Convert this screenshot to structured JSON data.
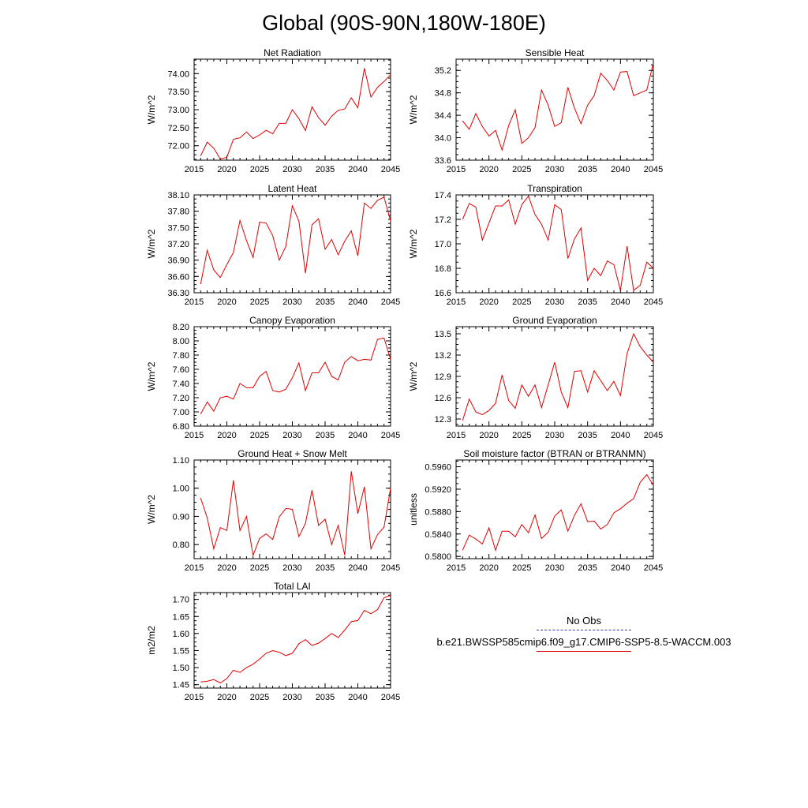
{
  "title": "Global (90S-90N,180W-180E)",
  "legend": {
    "obs_label": "No Obs",
    "model_label": "b.e21.BWSSP585cmip6.f09_g17.CMIP6-SSP5-8.5-WACCM.003",
    "obs_color": "#3a3aa0",
    "model_color": "#e00000"
  },
  "chart_data": [
    {
      "type": "line",
      "title": "Net Radiation",
      "ylabel": "W/m^2",
      "xlabel": "",
      "xlim": [
        2015,
        2045
      ],
      "ylim": [
        71.6,
        74.4
      ],
      "xticks": [
        2015,
        2020,
        2025,
        2030,
        2035,
        2040,
        2045
      ],
      "yticks": [
        72.0,
        72.5,
        73.0,
        73.5,
        74.0
      ],
      "ytick_labels": [
        "72.00",
        "72.50",
        "73.00",
        "73.50",
        "74.00"
      ],
      "x": [
        2016,
        2017,
        2018,
        2019,
        2020,
        2021,
        2022,
        2023,
        2024,
        2025,
        2026,
        2027,
        2028,
        2029,
        2030,
        2031,
        2032,
        2033,
        2034,
        2035,
        2036,
        2037,
        2038,
        2039,
        2040,
        2041,
        2042,
        2043,
        2044,
        2045
      ],
      "series": [
        {
          "name": "b.e21.BWSSP585cmip6.f09_g17.CMIP6-SSP5-8.5-WACCM.003",
          "values": [
            71.72,
            72.1,
            71.93,
            71.63,
            71.68,
            72.18,
            72.22,
            72.38,
            72.2,
            72.3,
            72.43,
            72.33,
            72.62,
            72.62,
            73.0,
            72.75,
            72.42,
            73.08,
            72.78,
            72.57,
            72.82,
            72.98,
            73.02,
            73.33,
            73.05,
            74.15,
            73.35,
            73.62,
            73.78,
            73.97
          ]
        }
      ]
    },
    {
      "type": "line",
      "title": "Sensible Heat",
      "ylabel": "W/m^2",
      "xlabel": "",
      "xlim": [
        2015,
        2045
      ],
      "ylim": [
        33.6,
        35.4
      ],
      "xticks": [
        2015,
        2020,
        2025,
        2030,
        2035,
        2040,
        2045
      ],
      "yticks": [
        33.6,
        34.0,
        34.4,
        34.8,
        35.2
      ],
      "ytick_labels": [
        "33.6",
        "34.0",
        "34.4",
        "34.8",
        "35.2"
      ],
      "x": [
        2016,
        2017,
        2018,
        2019,
        2020,
        2021,
        2022,
        2023,
        2024,
        2025,
        2026,
        2027,
        2028,
        2029,
        2030,
        2031,
        2032,
        2033,
        2034,
        2035,
        2036,
        2037,
        2038,
        2039,
        2040,
        2041,
        2042,
        2043,
        2044,
        2045
      ],
      "series": [
        {
          "name": "b.e21.BWSSP585cmip6.f09_g17.CMIP6-SSP5-8.5-WACCM.003",
          "values": [
            34.3,
            34.15,
            34.43,
            34.2,
            34.03,
            34.13,
            33.78,
            34.22,
            34.5,
            33.9,
            34.0,
            34.18,
            34.85,
            34.58,
            34.2,
            34.27,
            34.9,
            34.53,
            34.25,
            34.58,
            34.75,
            35.15,
            35.02,
            34.85,
            35.17,
            35.18,
            34.75,
            34.8,
            34.85,
            35.33
          ]
        }
      ]
    },
    {
      "type": "line",
      "title": "Latent Heat",
      "ylabel": "W/m^2",
      "xlabel": "",
      "xlim": [
        2015,
        2045
      ],
      "ylim": [
        36.3,
        38.1
      ],
      "xticks": [
        2015,
        2020,
        2025,
        2030,
        2035,
        2040,
        2045
      ],
      "yticks": [
        36.3,
        36.6,
        36.9,
        37.2,
        37.5,
        37.8,
        38.1
      ],
      "ytick_labels": [
        "36.30",
        "36.60",
        "36.90",
        "37.20",
        "37.50",
        "37.80",
        "38.10"
      ],
      "x": [
        2016,
        2017,
        2018,
        2019,
        2020,
        2021,
        2022,
        2023,
        2024,
        2025,
        2026,
        2027,
        2028,
        2029,
        2030,
        2031,
        2032,
        2033,
        2034,
        2035,
        2036,
        2037,
        2038,
        2039,
        2040,
        2041,
        2042,
        2043,
        2044,
        2045
      ],
      "series": [
        {
          "name": "b.e21.BWSSP585cmip6.f09_g17.CMIP6-SSP5-8.5-WACCM.003",
          "values": [
            36.46,
            37.08,
            36.72,
            36.58,
            36.82,
            37.04,
            37.63,
            37.26,
            36.95,
            37.6,
            37.58,
            37.35,
            36.9,
            37.15,
            37.9,
            37.62,
            36.66,
            37.55,
            37.66,
            37.1,
            37.28,
            37.0,
            37.25,
            37.44,
            36.98,
            37.95,
            37.85,
            38.0,
            38.06,
            37.62
          ]
        }
      ]
    },
    {
      "type": "line",
      "title": "Transpiration",
      "ylabel": "W/m^2",
      "xlabel": "",
      "xlim": [
        2015,
        2045
      ],
      "ylim": [
        16.6,
        17.4
      ],
      "xticks": [
        2015,
        2020,
        2025,
        2030,
        2035,
        2040,
        2045
      ],
      "yticks": [
        16.6,
        16.8,
        17.0,
        17.2,
        17.4
      ],
      "ytick_labels": [
        "16.6",
        "16.8",
        "17.0",
        "17.2",
        "17.4"
      ],
      "x": [
        2016,
        2017,
        2018,
        2019,
        2020,
        2021,
        2022,
        2023,
        2024,
        2025,
        2026,
        2027,
        2028,
        2029,
        2030,
        2031,
        2032,
        2033,
        2034,
        2035,
        2036,
        2037,
        2038,
        2039,
        2040,
        2041,
        2042,
        2043,
        2044,
        2045
      ],
      "series": [
        {
          "name": "b.e21.BWSSP585cmip6.f09_g17.CMIP6-SSP5-8.5-WACCM.003",
          "values": [
            17.2,
            17.33,
            17.3,
            17.03,
            17.17,
            17.31,
            17.31,
            17.36,
            17.16,
            17.32,
            17.39,
            17.24,
            17.16,
            17.03,
            17.32,
            17.28,
            16.88,
            17.04,
            17.13,
            16.7,
            16.8,
            16.74,
            16.86,
            16.83,
            16.62,
            16.98,
            16.62,
            16.66,
            16.85,
            16.8
          ]
        }
      ]
    },
    {
      "type": "line",
      "title": "Canopy Evaporation",
      "ylabel": "W/m^2",
      "xlabel": "",
      "xlim": [
        2015,
        2045
      ],
      "ylim": [
        6.8,
        8.2
      ],
      "xticks": [
        2015,
        2020,
        2025,
        2030,
        2035,
        2040,
        2045
      ],
      "yticks": [
        6.8,
        7.0,
        7.2,
        7.4,
        7.6,
        7.8,
        8.0,
        8.2
      ],
      "ytick_labels": [
        "6.80",
        "7.00",
        "7.20",
        "7.40",
        "7.60",
        "7.80",
        "8.00",
        "8.20"
      ],
      "x": [
        2016,
        2017,
        2018,
        2019,
        2020,
        2021,
        2022,
        2023,
        2024,
        2025,
        2026,
        2027,
        2028,
        2029,
        2030,
        2031,
        2032,
        2033,
        2034,
        2035,
        2036,
        2037,
        2038,
        2039,
        2040,
        2041,
        2042,
        2043,
        2044,
        2045
      ],
      "series": [
        {
          "name": "b.e21.BWSSP585cmip6.f09_g17.CMIP6-SSP5-8.5-WACCM.003",
          "values": [
            6.97,
            7.14,
            7.01,
            7.2,
            7.22,
            7.18,
            7.4,
            7.34,
            7.34,
            7.5,
            7.57,
            7.3,
            7.28,
            7.32,
            7.48,
            7.69,
            7.3,
            7.55,
            7.55,
            7.7,
            7.5,
            7.45,
            7.7,
            7.78,
            7.72,
            7.74,
            7.73,
            8.02,
            8.04,
            7.74
          ]
        }
      ]
    },
    {
      "type": "line",
      "title": "Ground Evaporation",
      "ylabel": "W/m^2",
      "xlabel": "",
      "xlim": [
        2015,
        2045
      ],
      "ylim": [
        12.2,
        13.6
      ],
      "xticks": [
        2015,
        2020,
        2025,
        2030,
        2035,
        2040,
        2045
      ],
      "yticks": [
        12.3,
        12.6,
        12.9,
        13.2,
        13.5
      ],
      "ytick_labels": [
        "12.3",
        "12.6",
        "12.9",
        "13.2",
        "13.5"
      ],
      "x": [
        2016,
        2017,
        2018,
        2019,
        2020,
        2021,
        2022,
        2023,
        2024,
        2025,
        2026,
        2027,
        2028,
        2029,
        2030,
        2031,
        2032,
        2033,
        2034,
        2035,
        2036,
        2037,
        2038,
        2039,
        2040,
        2041,
        2042,
        2043,
        2044,
        2045
      ],
      "series": [
        {
          "name": "b.e21.BWSSP585cmip6.f09_g17.CMIP6-SSP5-8.5-WACCM.003",
          "values": [
            12.28,
            12.58,
            12.4,
            12.36,
            12.42,
            12.52,
            12.92,
            12.56,
            12.45,
            12.78,
            12.62,
            12.78,
            12.46,
            12.78,
            13.1,
            12.68,
            12.46,
            12.97,
            12.98,
            12.68,
            12.98,
            12.84,
            12.7,
            12.83,
            12.63,
            13.22,
            13.5,
            13.32,
            13.2,
            13.1
          ]
        }
      ]
    },
    {
      "type": "line",
      "title": "Ground Heat + Snow Melt",
      "ylabel": "W/m^2",
      "xlabel": "",
      "xlim": [
        2015,
        2045
      ],
      "ylim": [
        0.75,
        1.1
      ],
      "xticks": [
        2015,
        2020,
        2025,
        2030,
        2035,
        2040,
        2045
      ],
      "yticks": [
        0.8,
        0.9,
        1.0,
        1.1
      ],
      "ytick_labels": [
        "0.80",
        "0.90",
        "1.00",
        "1.10"
      ],
      "x": [
        2016,
        2017,
        2018,
        2019,
        2020,
        2021,
        2022,
        2023,
        2024,
        2025,
        2026,
        2027,
        2028,
        2029,
        2030,
        2031,
        2032,
        2033,
        2034,
        2035,
        2036,
        2037,
        2038,
        2039,
        2040,
        2041,
        2042,
        2043,
        2044,
        2045
      ],
      "series": [
        {
          "name": "b.e21.BWSSP585cmip6.f09_g17.CMIP6-SSP5-8.5-WACCM.003",
          "values": [
            0.965,
            0.895,
            0.785,
            0.86,
            0.85,
            1.028,
            0.85,
            0.9,
            0.762,
            0.822,
            0.838,
            0.818,
            0.898,
            0.928,
            0.925,
            0.828,
            0.875,
            0.993,
            0.868,
            0.89,
            0.8,
            0.868,
            0.762,
            1.06,
            0.91,
            1.005,
            0.785,
            0.835,
            0.862,
            1.0
          ]
        }
      ]
    },
    {
      "type": "line",
      "title": "Soil moisture factor (BTRAN or BTRANMN)",
      "ylabel": "unitless",
      "xlabel": "",
      "xlim": [
        2015,
        2045
      ],
      "ylim": [
        0.5796,
        0.5972
      ],
      "xticks": [
        2015,
        2020,
        2025,
        2030,
        2035,
        2040,
        2045
      ],
      "yticks": [
        0.58,
        0.584,
        0.588,
        0.592,
        0.596
      ],
      "ytick_labels": [
        "0.5800",
        "0.5840",
        "0.5880",
        "0.5920",
        "0.5960"
      ],
      "x": [
        2016,
        2017,
        2018,
        2019,
        2020,
        2021,
        2022,
        2023,
        2024,
        2025,
        2026,
        2027,
        2028,
        2029,
        2030,
        2031,
        2032,
        2033,
        2034,
        2035,
        2036,
        2037,
        2038,
        2039,
        2040,
        2041,
        2042,
        2043,
        2044,
        2045
      ],
      "series": [
        {
          "name": "b.e21.BWSSP585cmip6.f09_g17.CMIP6-SSP5-8.5-WACCM.003",
          "values": [
            0.5811,
            0.5838,
            0.5831,
            0.5822,
            0.5851,
            0.5811,
            0.5845,
            0.5845,
            0.5835,
            0.5857,
            0.5842,
            0.5874,
            0.5832,
            0.5843,
            0.5872,
            0.5883,
            0.5845,
            0.5873,
            0.5894,
            0.5862,
            0.5863,
            0.5849,
            0.5857,
            0.5878,
            0.5885,
            0.5895,
            0.5903,
            0.5932,
            0.5946,
            0.5927
          ]
        }
      ]
    },
    {
      "type": "line",
      "title": "Total LAI",
      "ylabel": "m2/m2",
      "xlabel": "",
      "xlim": [
        2015,
        2045
      ],
      "ylim": [
        1.44,
        1.72
      ],
      "xticks": [
        2015,
        2020,
        2025,
        2030,
        2035,
        2040,
        2045
      ],
      "yticks": [
        1.45,
        1.5,
        1.55,
        1.6,
        1.65,
        1.7
      ],
      "ytick_labels": [
        "1.45",
        "1.50",
        "1.55",
        "1.60",
        "1.65",
        "1.70"
      ],
      "x": [
        2016,
        2017,
        2018,
        2019,
        2020,
        2021,
        2022,
        2023,
        2024,
        2025,
        2026,
        2027,
        2028,
        2029,
        2030,
        2031,
        2032,
        2033,
        2034,
        2035,
        2036,
        2037,
        2038,
        2039,
        2040,
        2041,
        2042,
        2043,
        2044,
        2045
      ],
      "series": [
        {
          "name": "b.e21.BWSSP585cmip6.f09_g17.CMIP6-SSP5-8.5-WACCM.003",
          "values": [
            1.458,
            1.46,
            1.465,
            1.455,
            1.468,
            1.492,
            1.486,
            1.5,
            1.51,
            1.525,
            1.542,
            1.55,
            1.545,
            1.535,
            1.542,
            1.57,
            1.582,
            1.565,
            1.572,
            1.585,
            1.6,
            1.588,
            1.61,
            1.635,
            1.638,
            1.668,
            1.658,
            1.67,
            1.705,
            1.712
          ]
        }
      ]
    }
  ]
}
